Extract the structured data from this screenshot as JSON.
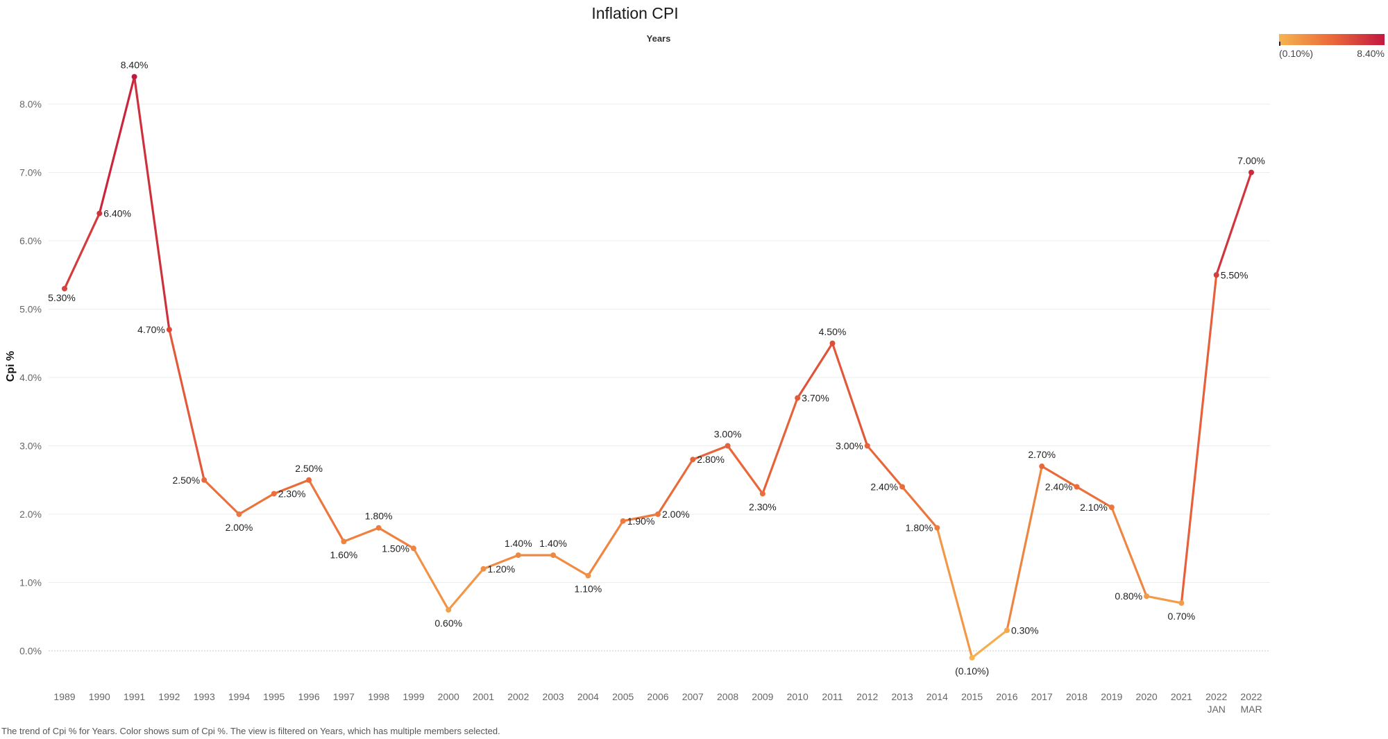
{
  "colors": {
    "low": "#f6b44f",
    "mid": "#ea6a3a",
    "high": "#c2183f"
  },
  "legend": {
    "min_label": "(0.10%)",
    "max_label": "8.40%"
  },
  "footer": "The trend of Cpi % for Years.  Color shows sum of Cpi %. The view is filtered on Years, which has multiple members selected.",
  "chart_data": {
    "type": "line",
    "title": "Inflation CPI",
    "column_header": "Years",
    "ylabel": "Cpi %",
    "xlabel": "",
    "ylim": [
      -0.5,
      8.8
    ],
    "yticks": [
      0,
      1,
      2,
      3,
      4,
      5,
      6,
      7,
      8
    ],
    "ytick_labels": [
      "0.0%",
      "1.0%",
      "2.0%",
      "3.0%",
      "4.0%",
      "5.0%",
      "6.0%",
      "7.0%",
      "8.0%"
    ],
    "grid": true,
    "legend_position": "top-right",
    "categories": [
      [
        "1989"
      ],
      [
        "1990"
      ],
      [
        "1991"
      ],
      [
        "1992"
      ],
      [
        "1993"
      ],
      [
        "1994"
      ],
      [
        "1995"
      ],
      [
        "1996"
      ],
      [
        "1997"
      ],
      [
        "1998"
      ],
      [
        "1999"
      ],
      [
        "2000"
      ],
      [
        "2001"
      ],
      [
        "2002"
      ],
      [
        "2003"
      ],
      [
        "2004"
      ],
      [
        "2005"
      ],
      [
        "2006"
      ],
      [
        "2007"
      ],
      [
        "2008"
      ],
      [
        "2009"
      ],
      [
        "2010"
      ],
      [
        "2011"
      ],
      [
        "2012"
      ],
      [
        "2013"
      ],
      [
        "2014"
      ],
      [
        "2015"
      ],
      [
        "2016"
      ],
      [
        "2017"
      ],
      [
        "2018"
      ],
      [
        "2019"
      ],
      [
        "2020"
      ],
      [
        "2021"
      ],
      [
        "2022",
        "JAN"
      ],
      [
        "2022",
        "MAR"
      ]
    ],
    "values": [
      5.3,
      6.4,
      8.4,
      4.7,
      2.5,
      2.0,
      2.3,
      2.5,
      1.6,
      1.8,
      1.5,
      0.6,
      1.2,
      1.4,
      1.4,
      1.1,
      1.9,
      2.0,
      2.8,
      3.0,
      2.3,
      3.7,
      4.5,
      3.0,
      2.4,
      1.8,
      -0.1,
      0.3,
      2.7,
      2.4,
      2.1,
      0.8,
      0.7,
      5.5,
      7.0
    ],
    "data_labels": [
      "5.30%",
      "6.40%",
      "8.40%",
      "4.70%",
      "2.50%",
      "2.00%",
      "2.30%",
      "2.50%",
      "1.60%",
      "1.80%",
      "1.50%",
      "0.60%",
      "1.20%",
      "1.40%",
      "1.40%",
      "1.10%",
      "1.90%",
      "2.00%",
      "2.80%",
      "3.00%",
      "2.30%",
      "3.70%",
      "4.50%",
      "3.00%",
      "2.40%",
      "1.80%",
      "(0.10%)",
      "0.30%",
      "2.70%",
      "2.40%",
      "2.10%",
      "0.80%",
      "0.70%",
      "5.50%",
      "7.00%"
    ]
  }
}
